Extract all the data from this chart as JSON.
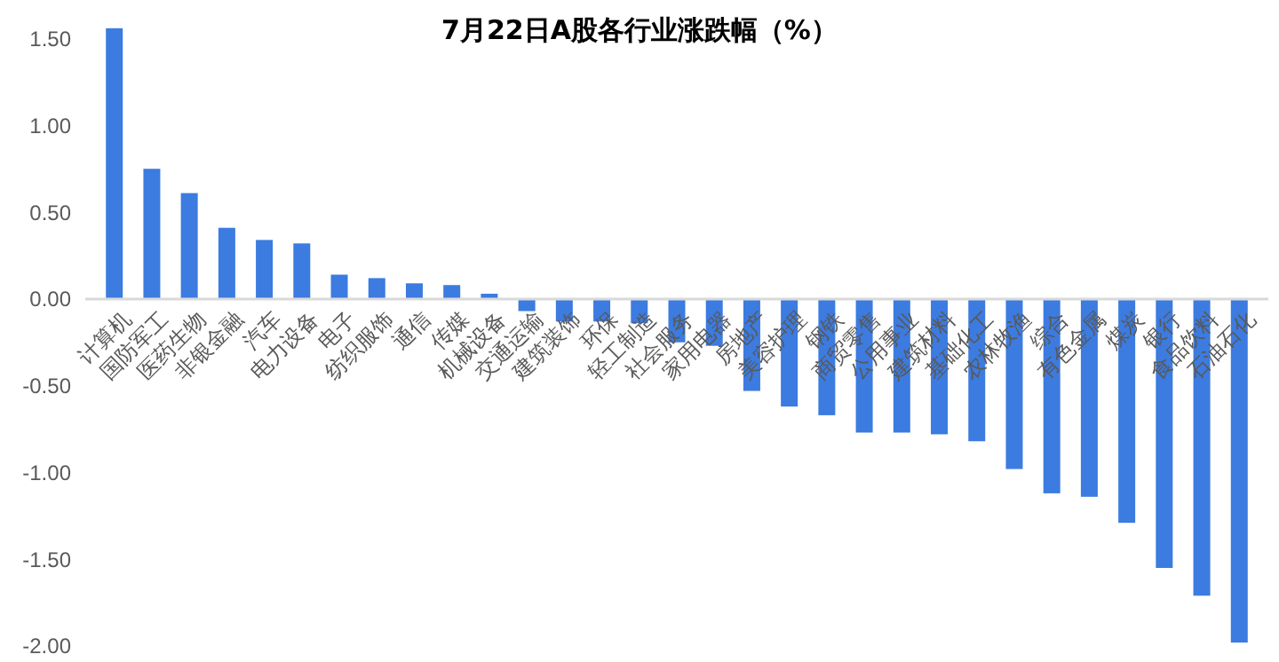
{
  "chart_data": {
    "type": "bar",
    "title": "7月22日A股各行业涨跌幅（%）",
    "categories": [
      "计算机",
      "国防军工",
      "医药生物",
      "非银金融",
      "汽车",
      "电力设备",
      "电子",
      "纺织服饰",
      "通信",
      "传媒",
      "机械设备",
      "交通运输",
      "建筑装饰",
      "环保",
      "轻工制造",
      "社会服务",
      "家用电器",
      "房地产",
      "美容护理",
      "钢铁",
      "商贸零售",
      "公用事业",
      "建筑材料",
      "基础化工",
      "农林牧渔",
      "综合",
      "有色金属",
      "煤炭",
      "银行",
      "食品饮料",
      "石油石化"
    ],
    "values": [
      1.56,
      0.75,
      0.61,
      0.41,
      0.34,
      0.32,
      0.14,
      0.12,
      0.09,
      0.08,
      0.03,
      -0.07,
      -0.13,
      -0.13,
      -0.14,
      -0.25,
      -0.27,
      -0.53,
      -0.62,
      -0.67,
      -0.77,
      -0.77,
      -0.78,
      -0.82,
      -0.98,
      -1.12,
      -1.14,
      -1.29,
      -1.55,
      -1.71,
      -1.98
    ],
    "color": "#3c7be0",
    "ylim": [
      -2,
      1.6
    ],
    "yticks": [
      {
        "value": -2,
        "label": "-2.00"
      },
      {
        "value": -1.5,
        "label": "-1.50"
      },
      {
        "value": -1,
        "label": "-1.00"
      },
      {
        "value": -0.5,
        "label": "-0.50"
      },
      {
        "value": 0,
        "label": "0.00"
      },
      {
        "value": 0.5,
        "label": "0.50"
      },
      {
        "value": 1,
        "label": "1.00"
      },
      {
        "value": 1.5,
        "label": "1.50"
      }
    ],
    "grid": false
  }
}
